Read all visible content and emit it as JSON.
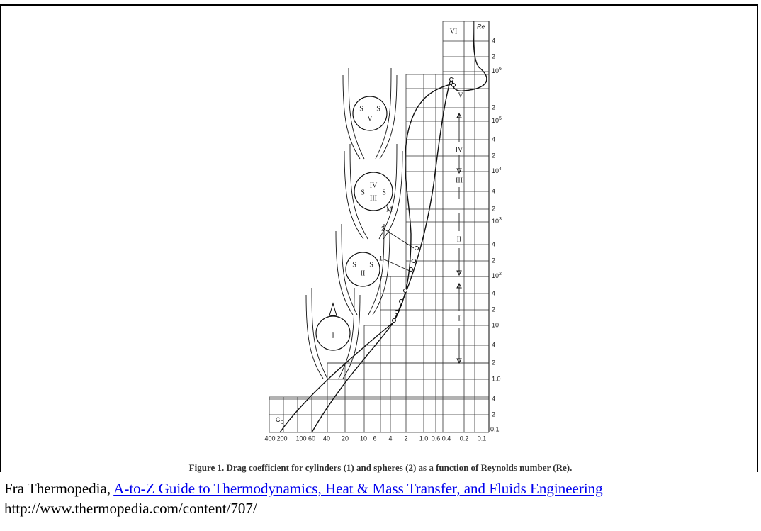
{
  "figure": {
    "region_labels": [
      "VI",
      "V",
      "IV",
      "III",
      "II",
      "I"
    ],
    "re_label": "Re",
    "cd_label": {
      "base": "C",
      "sub": "D"
    },
    "re_axis": [
      "4",
      "2",
      {
        "base": "10",
        "exp": "6"
      },
      "2",
      {
        "base": "10",
        "exp": "5"
      },
      "4",
      "2",
      {
        "base": "10",
        "exp": "4"
      },
      "4",
      "2",
      {
        "base": "10",
        "exp": "3"
      },
      "4",
      "2",
      {
        "base": "10",
        "exp": "2"
      },
      "4",
      "2",
      "10",
      "4",
      "2",
      "1.0",
      "4",
      "2"
    ],
    "cd_axis": [
      "400",
      "200",
      "100",
      "60",
      "40",
      "20",
      "10",
      "6",
      "4",
      "2",
      "1.0",
      "0.6",
      "0.4",
      "0.2",
      "0.1"
    ],
    "corner_label": "0.1",
    "curve_labels": [
      "1",
      "2"
    ],
    "sketch_text": {
      "separation": "S",
      "middle": "M"
    }
  },
  "caption": "Figure 1. Drag coefficient for cylinders (1) and spheres (2) as a function of Reynolds number (Re).",
  "source": {
    "prefix": "Fra Thermopedia,",
    "link": "A-to-Z Guide to Thermodynamics, Heat & Mass Transfer, and Fluids Engineering",
    "url": "http://www.thermopedia.com/content/707/"
  }
}
